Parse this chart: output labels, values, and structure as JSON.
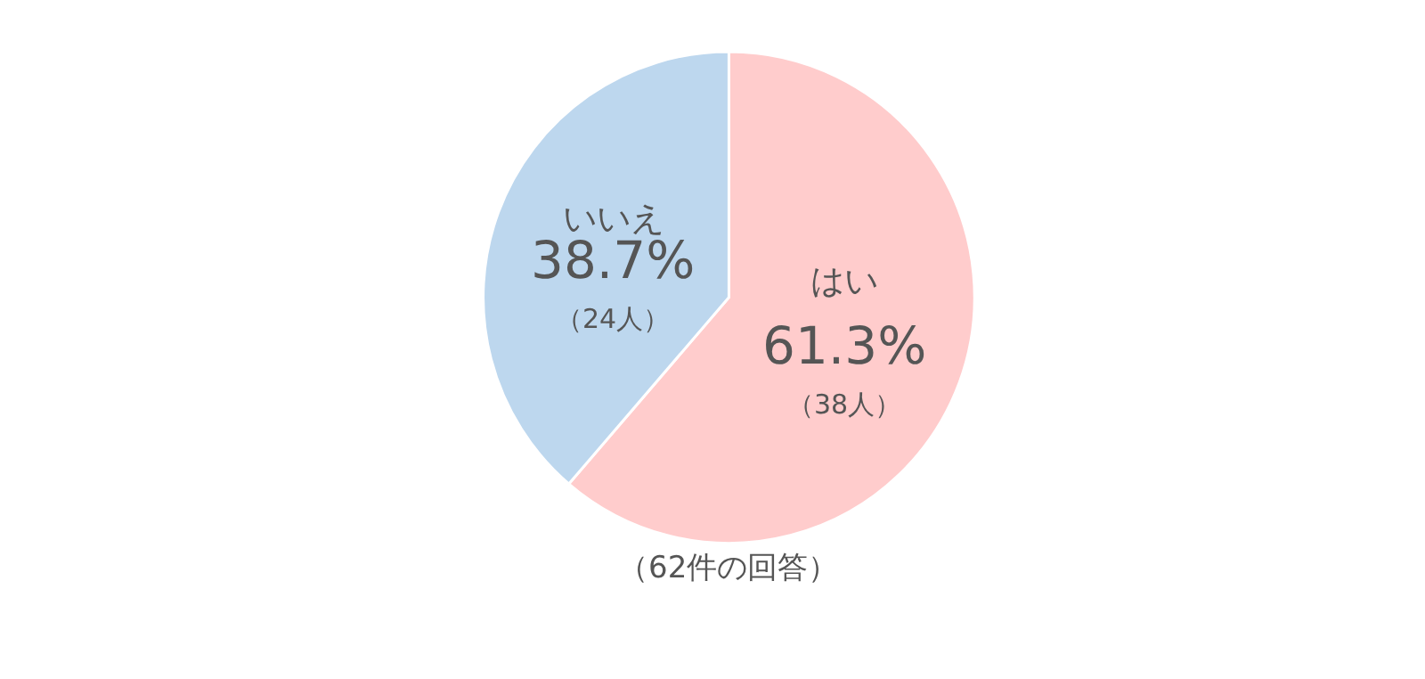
{
  "chart_data": {
    "type": "pie",
    "categories": [
      "はい",
      "いいえ"
    ],
    "values": [
      38,
      24
    ],
    "colors": [
      "#ffcccc",
      "#bdd7ee"
    ],
    "value_labels": [
      "61.3%\n（38人）",
      "38.7%\n（24人）"
    ],
    "annotations": [
      "（62件の回答）"
    ],
    "legend": false
  }
}
